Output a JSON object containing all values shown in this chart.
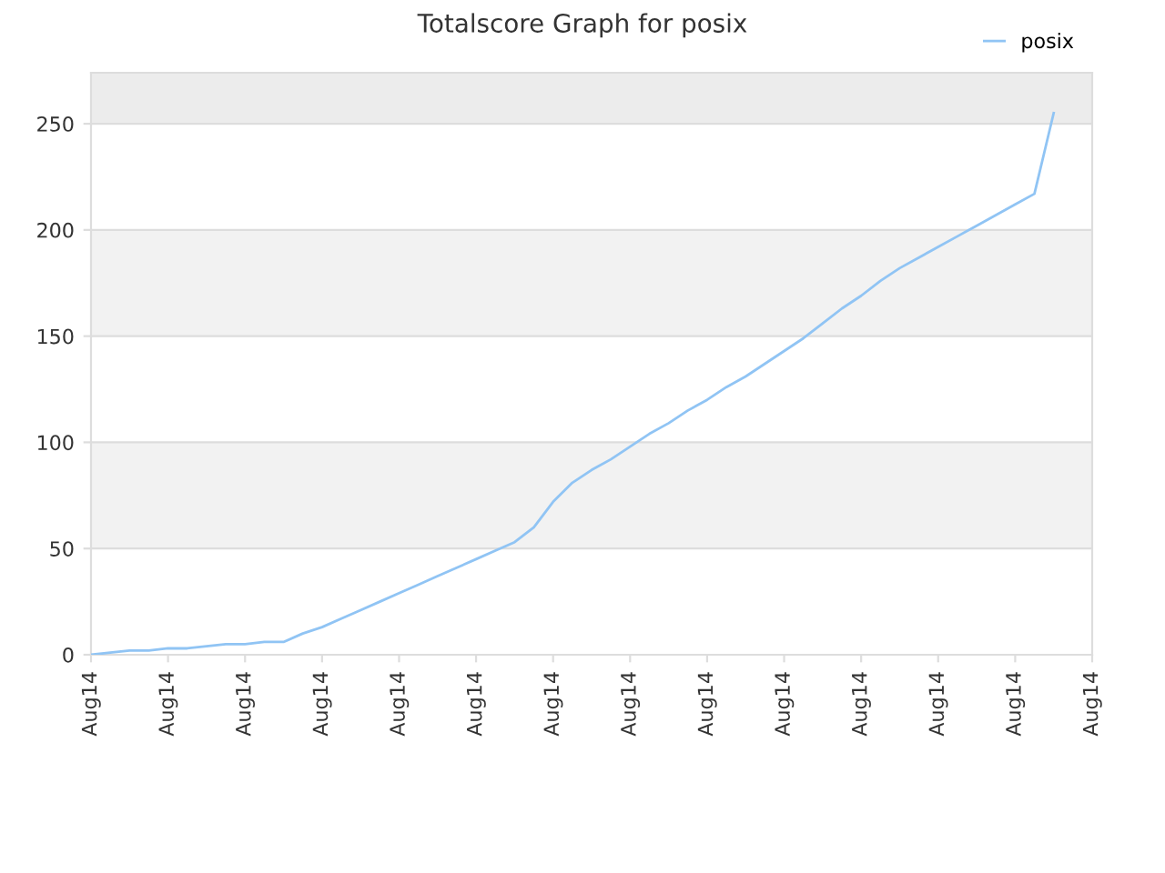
{
  "chart_data": {
    "type": "line",
    "title": "Totalscore Graph for posix",
    "categories": [
      "Aug14",
      null,
      null,
      null,
      "Aug14",
      null,
      null,
      null,
      "Aug14",
      null,
      null,
      null,
      "Aug14",
      null,
      null,
      null,
      "Aug14",
      null,
      null,
      null,
      "Aug14",
      null,
      null,
      null,
      "Aug14",
      null,
      null,
      null,
      "Aug14",
      null,
      null,
      null,
      "Aug14",
      null,
      null,
      null,
      "Aug14",
      null,
      null,
      null,
      "Aug14",
      null,
      null,
      null,
      "Aug14",
      null,
      null,
      null,
      "Aug14",
      null,
      null,
      null,
      "Aug14"
    ],
    "series": [
      {
        "name": "posix",
        "color": "#90c4f4",
        "values": [
          0,
          1,
          2,
          2,
          3,
          3,
          4,
          5,
          5,
          6,
          6,
          10,
          13,
          17,
          21,
          25,
          29,
          33,
          37,
          41,
          45,
          49,
          53,
          60,
          72,
          81,
          87,
          92,
          98,
          104,
          109,
          115,
          120,
          126,
          131,
          137,
          143,
          149,
          156,
          163,
          169,
          176,
          182,
          187,
          192,
          197,
          202,
          207,
          212,
          217,
          255,
          null,
          null
        ]
      }
    ],
    "ylim": [
      0,
      274
    ],
    "yticks": [
      0,
      50,
      100,
      150,
      200,
      250
    ],
    "bands": [
      {
        "axis": "y",
        "from": 50,
        "to": 100,
        "color": "#f2f2f2"
      },
      {
        "axis": "y",
        "from": 150,
        "to": 200,
        "color": "#f2f2f2"
      },
      {
        "axis": "y",
        "from": 250,
        "to": 274,
        "color": "#ececec"
      }
    ],
    "grid": "y",
    "legend": "top right",
    "marker": "none",
    "line_style": "solid"
  }
}
